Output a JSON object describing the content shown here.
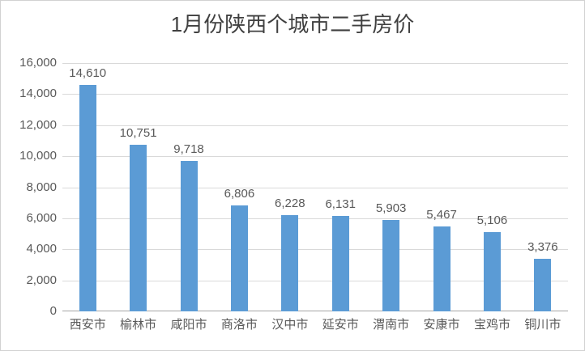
{
  "chart_data": {
    "type": "bar",
    "title": "1月份陕西个城市二手房价",
    "categories": [
      "西安市",
      "榆林市",
      "咸阳市",
      "商洛市",
      "汉中市",
      "延安市",
      "渭南市",
      "安康市",
      "宝鸡市",
      "铜川市"
    ],
    "values": [
      14610,
      10751,
      9718,
      6806,
      6228,
      6131,
      5903,
      5467,
      5106,
      3376
    ],
    "value_labels": [
      "14,610",
      "10,751",
      "9,718",
      "6,806",
      "6,228",
      "6,131",
      "5,903",
      "5,467",
      "5,106",
      "3,376"
    ],
    "xlabel": "",
    "ylabel": "",
    "ylim": [
      0,
      16000
    ],
    "y_tick_step": 2000,
    "y_tick_labels": [
      "16,000",
      "14,000",
      "12,000",
      "10,000",
      "8,000",
      "6,000",
      "4,000",
      "2,000",
      "0"
    ],
    "grid": true,
    "legend": false,
    "colors": {
      "bar": "#5b9bd5",
      "gridline": "#d9d9d9",
      "axis_line": "#a6a6a6",
      "axis_text": "#595959",
      "title_text": "#404040",
      "chart_border": "#d2d2d2",
      "background": "#ffffff"
    }
  }
}
